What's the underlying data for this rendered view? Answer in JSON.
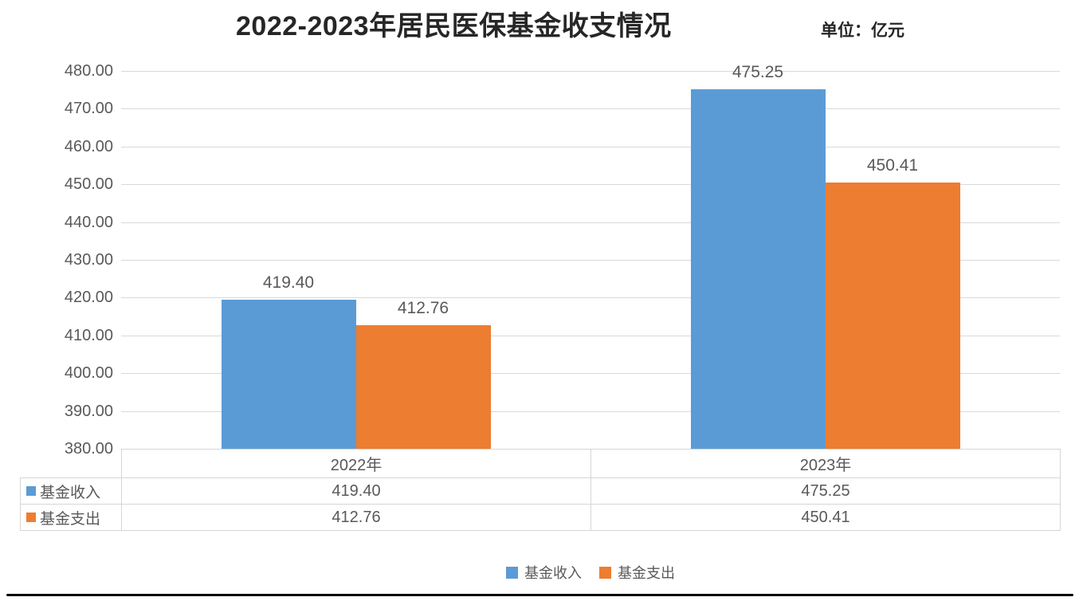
{
  "header": {
    "title": "2022-2023年居民医保基金收支情况",
    "unit_label": "单位：亿元"
  },
  "chart_data": {
    "type": "bar",
    "title": "2022-2023年居民医保基金收支情况",
    "unit": "亿元",
    "categories": [
      "2022年",
      "2023年"
    ],
    "series": [
      {
        "name": "基金收入",
        "color": "#5B9BD5",
        "values": [
          419.4,
          475.25
        ],
        "labels": [
          "419.40",
          "475.25"
        ]
      },
      {
        "name": "基金支出",
        "color": "#ED7D31",
        "values": [
          412.76,
          450.41
        ],
        "labels": [
          "412.76",
          "450.41"
        ]
      }
    ],
    "ylim": [
      380,
      480
    ],
    "ytick_step": 10,
    "y_tick_labels": [
      "480.00",
      "470.00",
      "460.00",
      "450.00",
      "440.00",
      "430.00",
      "420.00",
      "410.00",
      "400.00",
      "390.00",
      "380.00"
    ],
    "grid": true,
    "legend_position": "bottom",
    "data_labels": true,
    "data_table_shown": true
  },
  "data_table": {
    "column_headers": [
      "2022年",
      "2023年"
    ],
    "rows": [
      {
        "key": "基金收入",
        "swatch_color": "#5B9BD5",
        "values": [
          "419.40",
          "475.25"
        ]
      },
      {
        "key": "基金支出",
        "swatch_color": "#ED7D31",
        "values": [
          "412.76",
          "450.41"
        ]
      }
    ]
  },
  "legend": {
    "items": [
      {
        "label": "基金收入",
        "color": "#5B9BD5"
      },
      {
        "label": "基金支出",
        "color": "#ED7D31"
      }
    ]
  }
}
